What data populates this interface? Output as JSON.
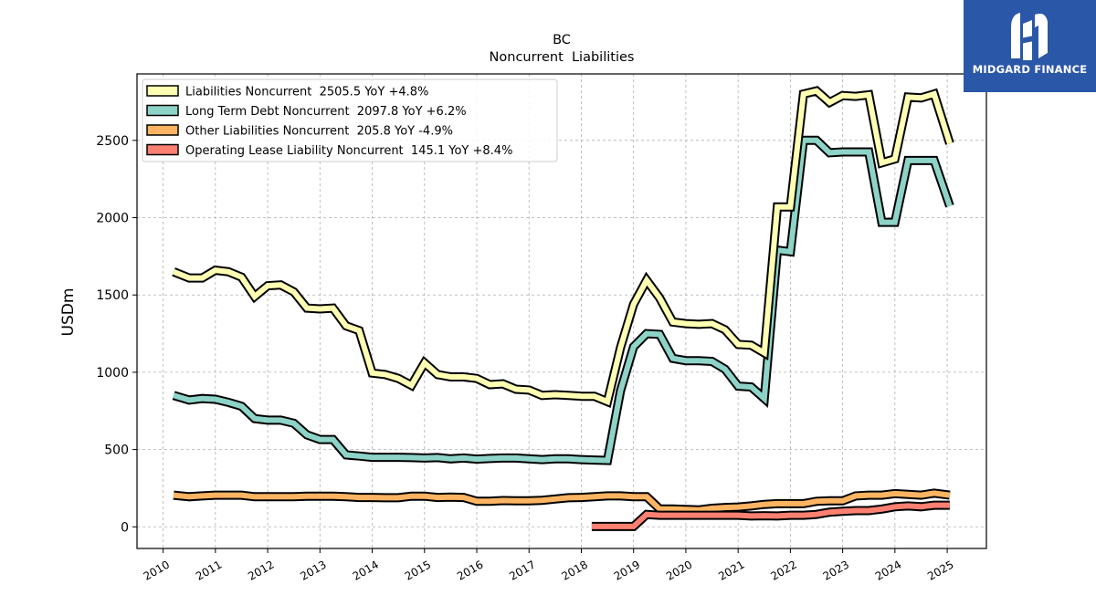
{
  "logo": {
    "text": "MIDGARD FINANCE"
  },
  "chart_data": {
    "type": "line",
    "title": "BC",
    "subtitle": "Noncurrent  Liabilities",
    "ylabel": "USDm",
    "xlabel": "",
    "ylim": [
      -140,
      2930
    ],
    "xlim": [
      2009.5,
      2025.75
    ],
    "yticks": [
      0,
      500,
      1000,
      1500,
      2000,
      2500
    ],
    "xticks": [
      2010,
      2011,
      2012,
      2013,
      2014,
      2015,
      2016,
      2017,
      2018,
      2019,
      2020,
      2021,
      2022,
      2023,
      2024,
      2025
    ],
    "grid": true,
    "legend_position": "upper-left",
    "series": [
      {
        "name": "Liabilities Noncurrent",
        "legend": "Liabilities Noncurrent  2505.5 YoY +4.8%",
        "color": "#ffffb3",
        "x": [
          2010.2,
          2010.5,
          2010.75,
          2011.0,
          2011.25,
          2011.5,
          2011.75,
          2012.0,
          2012.25,
          2012.5,
          2012.75,
          2013.0,
          2013.25,
          2013.5,
          2013.75,
          2014.0,
          2014.25,
          2014.5,
          2014.75,
          2015.0,
          2015.25,
          2015.5,
          2015.75,
          2016.0,
          2016.25,
          2016.5,
          2016.75,
          2017.0,
          2017.25,
          2017.5,
          2017.75,
          2018.0,
          2018.25,
          2018.5,
          2018.75,
          2019.0,
          2019.25,
          2019.5,
          2019.75,
          2020.0,
          2020.25,
          2020.5,
          2020.75,
          2021.0,
          2021.25,
          2021.5,
          2021.75,
          2022.0,
          2022.25,
          2022.5,
          2022.75,
          2023.0,
          2023.25,
          2023.5,
          2023.75,
          2024.0,
          2024.25,
          2024.5,
          2024.75,
          2025.05
        ],
        "values": [
          1650,
          1610,
          1610,
          1660,
          1650,
          1615,
          1490,
          1560,
          1565,
          1520,
          1415,
          1410,
          1415,
          1300,
          1270,
          995,
          985,
          960,
          915,
          1060,
          985,
          970,
          970,
          960,
          920,
          925,
          890,
          885,
          850,
          855,
          850,
          845,
          845,
          810,
          1160,
          1440,
          1595,
          1480,
          1325,
          1315,
          1310,
          1315,
          1275,
          1180,
          1175,
          1125,
          2070,
          2070,
          2800,
          2820,
          2745,
          2790,
          2785,
          2795,
          2355,
          2380,
          2780,
          2775,
          2800,
          2480
        ]
      },
      {
        "name": "Long Term Debt Noncurrent",
        "legend": "Long Term Debt Noncurrent  2097.8 YoY +6.2%",
        "color": "#8dd3c7",
        "x": [
          2010.2,
          2010.5,
          2010.75,
          2011.0,
          2011.25,
          2011.5,
          2011.75,
          2012.0,
          2012.25,
          2012.5,
          2012.75,
          2013.0,
          2013.25,
          2013.5,
          2013.75,
          2014.0,
          2014.25,
          2014.5,
          2014.75,
          2015.0,
          2015.25,
          2015.5,
          2015.75,
          2016.0,
          2016.25,
          2016.5,
          2016.75,
          2017.0,
          2017.25,
          2017.5,
          2017.75,
          2018.0,
          2018.25,
          2018.5,
          2018.75,
          2019.0,
          2019.25,
          2019.5,
          2019.75,
          2020.0,
          2020.25,
          2020.5,
          2020.75,
          2021.0,
          2021.25,
          2021.5,
          2021.75,
          2022.0,
          2022.25,
          2022.5,
          2022.75,
          2023.0,
          2023.25,
          2023.5,
          2023.75,
          2024.0,
          2024.25,
          2024.5,
          2024.75,
          2025.05
        ],
        "values": [
          850,
          820,
          830,
          825,
          805,
          780,
          700,
          690,
          690,
          670,
          595,
          565,
          565,
          465,
          458,
          450,
          450,
          450,
          448,
          445,
          448,
          440,
          445,
          438,
          442,
          445,
          445,
          440,
          435,
          440,
          440,
          435,
          432,
          430,
          880,
          1165,
          1250,
          1245,
          1090,
          1075,
          1075,
          1070,
          1020,
          910,
          905,
          830,
          1790,
          1780,
          2500,
          2500,
          2420,
          2425,
          2425,
          2425,
          1970,
          1970,
          2370,
          2370,
          2370,
          2075
        ]
      },
      {
        "name": "Other Liabilities Noncurrent",
        "legend": "Other Liabilities Noncurrent  205.8 YoY -4.9%",
        "color": "#fdb462",
        "x": [
          2010.2,
          2010.5,
          2010.75,
          2011.0,
          2011.25,
          2011.5,
          2011.75,
          2012.0,
          2012.25,
          2012.5,
          2012.75,
          2013.0,
          2013.25,
          2013.5,
          2013.75,
          2014.0,
          2014.25,
          2014.5,
          2014.75,
          2015.0,
          2015.25,
          2015.5,
          2015.75,
          2016.0,
          2016.25,
          2016.5,
          2016.75,
          2017.0,
          2017.25,
          2017.5,
          2017.75,
          2018.0,
          2018.25,
          2018.5,
          2018.75,
          2019.0,
          2019.25,
          2019.5,
          2019.75,
          2020.0,
          2020.25,
          2020.5,
          2020.75,
          2021.0,
          2021.25,
          2021.5,
          2021.75,
          2022.0,
          2022.25,
          2022.5,
          2022.75,
          2023.0,
          2023.25,
          2023.5,
          2023.75,
          2024.0,
          2024.25,
          2024.5,
          2024.75,
          2025.05
        ],
        "values": [
          205,
          195,
          200,
          205,
          205,
          205,
          195,
          195,
          195,
          195,
          198,
          198,
          198,
          195,
          190,
          190,
          188,
          188,
          198,
          198,
          190,
          192,
          190,
          165,
          165,
          170,
          168,
          168,
          172,
          180,
          188,
          190,
          195,
          200,
          200,
          195,
          195,
          115,
          115,
          112,
          110,
          120,
          125,
          128,
          135,
          145,
          150,
          150,
          150,
          165,
          168,
          168,
          200,
          205,
          205,
          215,
          210,
          205,
          218,
          205
        ]
      },
      {
        "name": "Operating Lease Liability Noncurrent",
        "legend": "Operating Lease Liability Noncurrent  145.1 YoY +8.4%",
        "color": "#fb8072",
        "x": [
          2018.2,
          2018.5,
          2018.75,
          2019.0,
          2019.25,
          2019.5,
          2019.75,
          2020.0,
          2020.25,
          2020.5,
          2020.75,
          2021.0,
          2021.25,
          2021.5,
          2021.75,
          2022.0,
          2022.25,
          2022.5,
          2022.75,
          2023.0,
          2023.25,
          2023.5,
          2023.75,
          2024.0,
          2024.25,
          2024.5,
          2024.75,
          2025.05
        ],
        "values": [
          2,
          2,
          2,
          2,
          80,
          75,
          75,
          75,
          75,
          75,
          75,
          75,
          70,
          72,
          70,
          75,
          75,
          80,
          95,
          100,
          105,
          105,
          115,
          130,
          135,
          130,
          140,
          140
        ]
      }
    ]
  }
}
